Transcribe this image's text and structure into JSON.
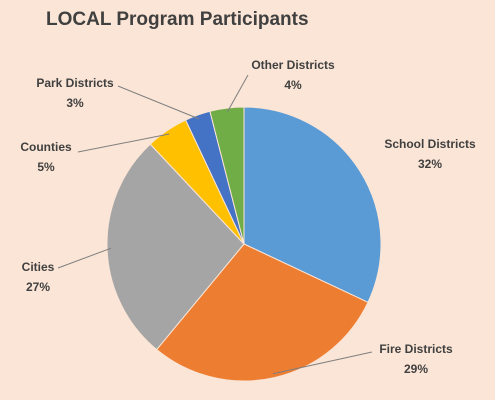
{
  "chart_data": {
    "type": "pie",
    "title": "LOCAL Program Participants",
    "categories": [
      "School Districts",
      "Fire Districts",
      "Cities",
      "Counties",
      "Park Districts",
      "Other Districts"
    ],
    "values": [
      32,
      29,
      27,
      5,
      3,
      4
    ],
    "value_labels": [
      "32%",
      "29%",
      "27%",
      "5%",
      "3%",
      "4%"
    ],
    "colors": [
      "#5b9bd5",
      "#ed7d31",
      "#a5a5a5",
      "#ffc000",
      "#4472c4",
      "#70ad47"
    ]
  }
}
